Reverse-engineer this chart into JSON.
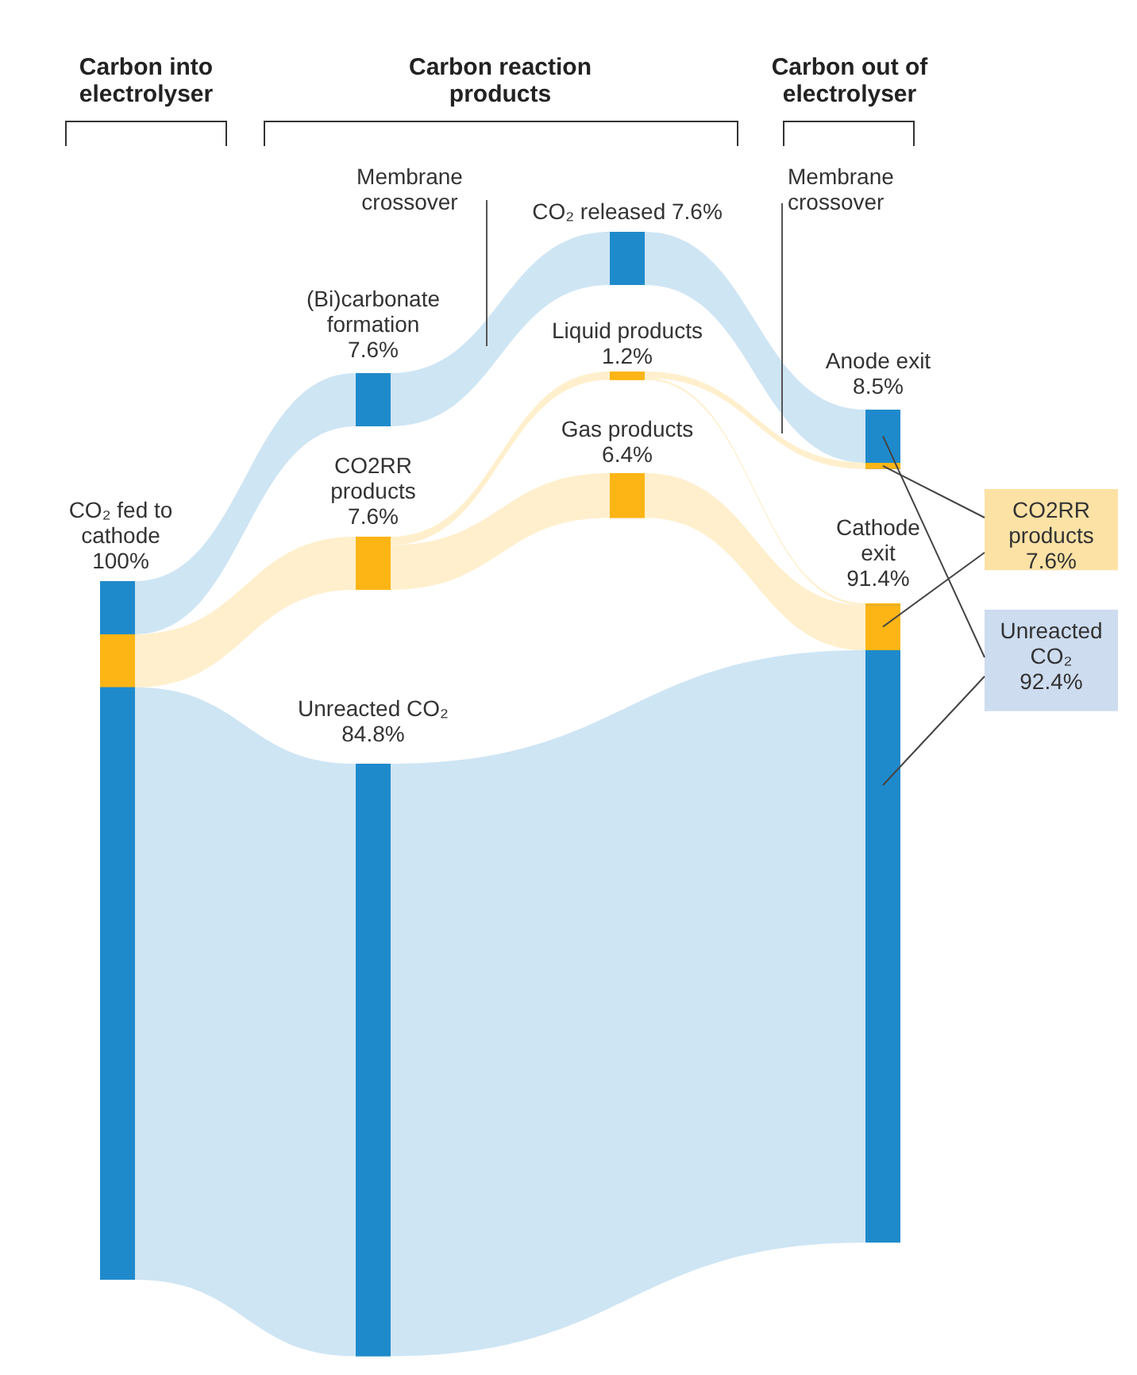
{
  "chart_data": {
    "type": "other",
    "annotations": [
      "Carbon into electrolyser",
      "Carbon reaction products",
      "Carbon out of electrolyser",
      "Membrane crossover",
      "Membrane crossover"
    ],
    "categories": [
      "CO₂ fed to cathode",
      "(Bi)carbonate formation",
      "CO2RR products",
      "Unreacted CO₂",
      "CO₂ released",
      "Liquid products",
      "Gas products",
      "Anode exit",
      "Cathode exit",
      "CO2RR products",
      "Unreacted CO₂"
    ],
    "values": [
      100,
      7.6,
      7.6,
      84.8,
      7.6,
      1.2,
      6.4,
      8.5,
      91.4,
      7.6,
      92.4
    ],
    "value_labels": [
      "100%",
      "7.6%",
      "7.6%",
      "84.8%",
      "7.6%",
      "1.2%",
      "6.4%",
      "8.5%",
      "91.4%",
      "7.6%",
      "92.4%"
    ],
    "colors": [
      "#1f8acb",
      "#1f8acb",
      "#fdb515",
      "#1f8acb",
      "#1f8acb",
      "#fdb515",
      "#fdb515",
      "#1f8acb",
      "#1f8acb",
      "#fde2a6",
      "#cddcef"
    ]
  }
}
